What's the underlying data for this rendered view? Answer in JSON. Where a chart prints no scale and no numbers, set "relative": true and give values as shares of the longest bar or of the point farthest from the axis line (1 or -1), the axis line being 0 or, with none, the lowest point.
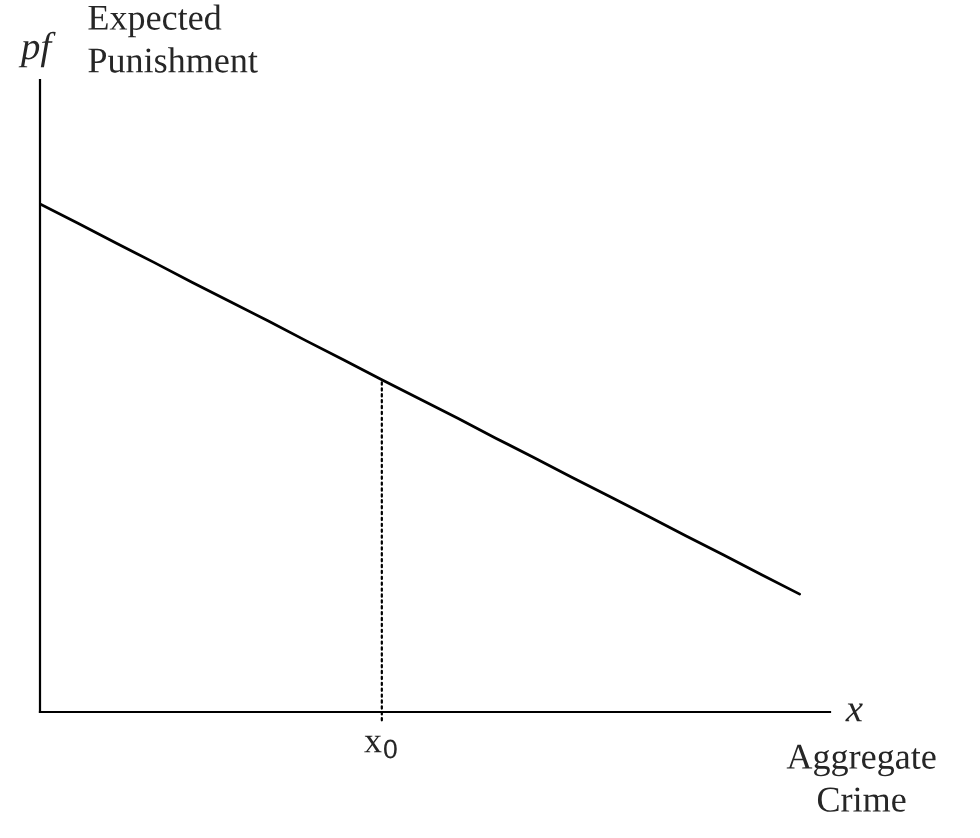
{
  "chart_data": {
    "type": "line",
    "relative": true,
    "xlabel": "x",
    "ylabel": "pf",
    "annotations": [
      "Expected\nPunishment",
      "Aggregate\nCrime",
      {
        "text": "x$_{0}$",
        "y": 0.654
      }
    ],
    "categories": [
      null,
      null,
      null,
      null,
      null,
      null,
      null,
      null,
      null,
      null,
      null,
      null,
      null,
      null,
      null,
      null,
      null,
      null,
      null,
      null,
      null
    ],
    "series": [
      {
        "color": "#000000",
        "values": [
          1,
          0.962,
          0.923,
          0.885,
          0.846,
          0.808,
          0.77,
          0.731,
          0.693,
          0.654,
          0.616,
          0.578,
          0.539,
          0.501,
          0.462,
          0.424,
          0.386,
          0.347,
          0.309,
          0.27,
          0.232
        ]
      }
    ],
    "legend": false,
    "marker": "none",
    "line_style": "solid"
  }
}
